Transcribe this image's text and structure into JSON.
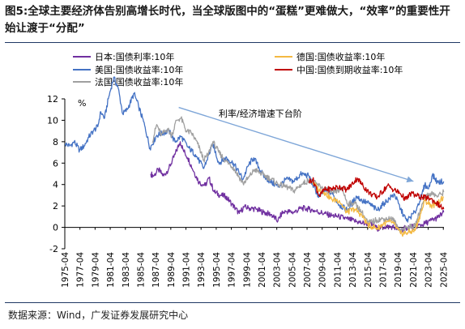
{
  "header": {
    "figure_label": "图5:",
    "title": "全球主要经济体告别高增长时代，当全球版图中的“蛋糕”更难做大，“效率”的重要性开始让渡于“分配”"
  },
  "footer": {
    "source": "数据来源：Wind，广发证券发展研究中心"
  },
  "chart_data": {
    "type": "line",
    "ylabel": "%",
    "ylim": [
      -2,
      12
    ],
    "yticks": [
      -2,
      0,
      2,
      4,
      6,
      8,
      10,
      12
    ],
    "xlim": [
      1975.25,
      2025.33
    ],
    "xticks": [
      "1975-04",
      "1977-04",
      "1979-04",
      "1981-04",
      "1983-04",
      "1985-04",
      "1987-04",
      "1989-04",
      "1991-04",
      "1993-04",
      "1995-04",
      "1997-04",
      "1999-04",
      "2001-04",
      "2003-04",
      "2005-04",
      "2007-04",
      "2009-04",
      "2011-04",
      "2013-04",
      "2015-04",
      "2017-04",
      "2019-04",
      "2021-04",
      "2023-04",
      "2025-04"
    ],
    "grid": false,
    "legend_position": "top",
    "annotation": {
      "text": "利率/经济增速下台阶",
      "arrow_from": [
        1990.3,
        11.2
      ],
      "arrow_to": [
        2021.3,
        4.3
      ]
    },
    "series": [
      {
        "name": "日本:国债利率:10年",
        "color": "#7030a0",
        "x": [
          1986.6,
          1987.0,
          1987.6,
          1988.3,
          1989.0,
          1989.8,
          1990.5,
          1990.9,
          1991.5,
          1992.3,
          1993.0,
          1993.8,
          1994.3,
          1995.0,
          1995.8,
          1996.5,
          1997.3,
          1998.3,
          1998.9,
          1999.5,
          2000.5,
          2001.5,
          2002.5,
          2003.4,
          2003.9,
          2004.5,
          2005.5,
          2006.5,
          2007.5,
          2008.5,
          2009.5,
          2010.5,
          2011.5,
          2012.5,
          2013.5,
          2014.5,
          2015.5,
          2016.5,
          2017.5,
          2018.5,
          2019.6,
          2020.5,
          2021.5,
          2022.5,
          2023.5,
          2024.5,
          2025.3
        ],
        "y": [
          5.0,
          4.8,
          5.4,
          4.8,
          5.5,
          6.8,
          8.0,
          7.2,
          6.5,
          5.2,
          4.2,
          3.9,
          4.6,
          3.3,
          3.0,
          2.9,
          2.2,
          1.3,
          1.9,
          1.8,
          1.7,
          1.4,
          1.2,
          0.6,
          1.3,
          1.5,
          1.4,
          1.8,
          1.7,
          1.5,
          1.3,
          1.1,
          1.0,
          0.8,
          0.6,
          0.4,
          0.35,
          -0.1,
          0.05,
          0.05,
          -0.25,
          0.0,
          0.1,
          0.25,
          0.6,
          0.9,
          1.4
        ]
      },
      {
        "name": "美国:国债收益率:10年",
        "color": "#4472c4",
        "x": [
          1975.3,
          1975.9,
          1976.5,
          1977.2,
          1977.8,
          1978.4,
          1979.0,
          1979.6,
          1980.0,
          1980.5,
          1981.0,
          1981.7,
          1982.3,
          1982.9,
          1983.5,
          1984.4,
          1985.0,
          1985.8,
          1986.5,
          1987.4,
          1988.2,
          1989.0,
          1989.8,
          1990.6,
          1991.5,
          1992.5,
          1993.6,
          1994.8,
          1995.6,
          1996.5,
          1997.5,
          1998.8,
          1999.5,
          2000.2,
          2001.5,
          2002.5,
          2003.5,
          2004.5,
          2005.5,
          2006.5,
          2007.5,
          2008.8,
          2009.5,
          2010.5,
          2011.5,
          2012.6,
          2013.8,
          2014.5,
          2015.5,
          2016.5,
          2017.5,
          2018.8,
          2019.6,
          2020.4,
          2021.5,
          2022.4,
          2022.8,
          2023.3,
          2023.8,
          2024.5,
          2025.3
        ],
        "y": [
          7.8,
          7.6,
          8.0,
          7.2,
          7.6,
          8.4,
          9.0,
          9.4,
          10.8,
          10.2,
          12.0,
          14.0,
          13.0,
          10.6,
          11.0,
          12.5,
          11.3,
          9.5,
          7.4,
          8.6,
          8.8,
          9.0,
          8.0,
          8.5,
          7.5,
          6.8,
          5.5,
          7.8,
          6.0,
          6.5,
          6.0,
          4.5,
          5.8,
          6.5,
          4.8,
          4.2,
          3.8,
          4.5,
          4.3,
          5.0,
          4.8,
          2.8,
          3.4,
          3.2,
          2.1,
          1.6,
          2.9,
          2.5,
          2.2,
          1.6,
          2.3,
          3.1,
          1.7,
          0.6,
          1.4,
          3.0,
          4.0,
          3.6,
          4.9,
          4.2,
          4.3
        ]
      },
      {
        "name": "法国:国债收益率:10年",
        "color": "#a0a0a0",
        "x": [
          1986.8,
          1987.4,
          1988.0,
          1988.8,
          1989.4,
          1990.0,
          1990.6,
          1991.3,
          1992.0,
          1992.8,
          1993.6,
          1994.2,
          1994.8,
          1995.6,
          1996.5,
          1997.5,
          1998.8,
          1999.5,
          2000.3,
          2001.5,
          2002.5,
          2003.5,
          2004.5,
          2005.5,
          2006.5,
          2007.5,
          2008.6,
          2009.5,
          2010.5,
          2011.9,
          2012.6,
          2013.5,
          2014.5,
          2015.3,
          2016.5,
          2017.5,
          2018.5,
          2019.6,
          2020.5,
          2021.5,
          2022.5,
          2022.8,
          2023.6,
          2024.5,
          2025.3
        ],
        "y": [
          8.0,
          9.6,
          8.6,
          9.2,
          8.6,
          10.0,
          10.2,
          9.0,
          8.8,
          7.8,
          6.3,
          6.8,
          8.0,
          7.0,
          6.2,
          5.6,
          4.1,
          4.6,
          5.4,
          4.9,
          4.5,
          4.0,
          3.8,
          3.4,
          4.0,
          4.4,
          4.0,
          3.6,
          3.2,
          3.6,
          2.2,
          2.3,
          1.4,
          0.4,
          0.7,
          0.8,
          0.8,
          -0.3,
          0.0,
          0.1,
          2.2,
          2.8,
          3.2,
          2.9,
          3.3
        ]
      },
      {
        "name": "德国:国债收益率:10年",
        "color": "#f4b942",
        "x": [
          2008.0,
          2008.8,
          2009.5,
          2010.5,
          2011.5,
          2012.5,
          2013.5,
          2014.5,
          2015.3,
          2016.5,
          2017.5,
          2018.5,
          2019.6,
          2020.5,
          2021.5,
          2022.5,
          2022.8,
          2023.8,
          2024.5,
          2025.3
        ],
        "y": [
          4.2,
          3.5,
          3.3,
          2.6,
          2.5,
          1.4,
          1.7,
          1.1,
          0.2,
          -0.1,
          0.4,
          0.5,
          -0.6,
          -0.5,
          -0.3,
          1.8,
          2.5,
          2.0,
          2.3,
          2.8
        ]
      },
      {
        "name": "中国:国债到期收益率:10年",
        "color": "#c00000",
        "x": [
          2007.5,
          2008.0,
          2008.9,
          2009.5,
          2010.5,
          2011.5,
          2012.5,
          2013.9,
          2014.5,
          2015.5,
          2016.5,
          2017.9,
          2018.5,
          2019.5,
          2020.3,
          2021.0,
          2021.5,
          2022.5,
          2023.5,
          2024.3,
          2025.3
        ],
        "y": [
          4.3,
          4.5,
          2.9,
          3.5,
          3.6,
          3.8,
          3.5,
          4.6,
          4.0,
          3.2,
          2.8,
          3.9,
          3.6,
          3.2,
          2.6,
          3.2,
          3.0,
          2.8,
          2.7,
          2.3,
          1.7
        ]
      }
    ]
  }
}
